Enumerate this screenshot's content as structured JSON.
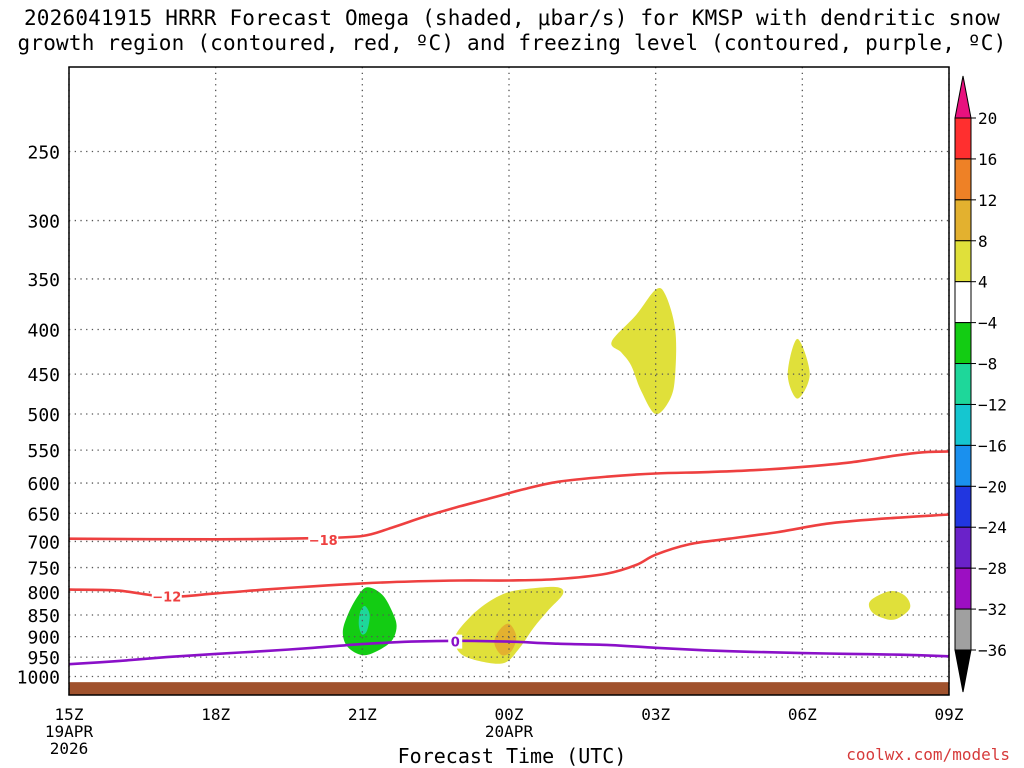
{
  "chart_data": {
    "type": "time-height cross-section",
    "title_line1": "2026041915 HRRR Forecast Omega (shaded, μbar/s) for KMSP with dendritic snow",
    "title_line2": "growth region (contoured, red, ºC) and freezing level (contoured, purple, ºC)",
    "xlabel": "Forecast Time (UTC)",
    "credit": "coolwx.com/models",
    "x_ticks": [
      {
        "hour": 0,
        "label": "15Z",
        "sub1": "19APR",
        "sub2": "2026"
      },
      {
        "hour": 3,
        "label": "18Z",
        "sub1": "",
        "sub2": ""
      },
      {
        "hour": 6,
        "label": "21Z",
        "sub1": "",
        "sub2": ""
      },
      {
        "hour": 9,
        "label": "00Z",
        "sub1": "20APR",
        "sub2": ""
      },
      {
        "hour": 12,
        "label": "03Z",
        "sub1": "",
        "sub2": ""
      },
      {
        "hour": 15,
        "label": "06Z",
        "sub1": "",
        "sub2": ""
      },
      {
        "hour": 18,
        "label": "09Z",
        "sub1": "",
        "sub2": ""
      }
    ],
    "xlim_hours": [
      0,
      18
    ],
    "ylim_hPa": [
      1050,
      200
    ],
    "pressure_ticks": [
      250,
      300,
      350,
      400,
      450,
      500,
      550,
      600,
      650,
      700,
      750,
      800,
      850,
      900,
      950,
      1000
    ],
    "colorbar": {
      "labels": [
        "20",
        "16",
        "12",
        "8",
        "4",
        "−4",
        "−8",
        "−12",
        "−16",
        "−20",
        "−24",
        "−28",
        "−32",
        "−36"
      ],
      "colors": [
        "#ff2f2f",
        "#ee8126",
        "#e3b12f",
        "#e0e03a",
        "#ffffff",
        "#13cc13",
        "#1ed79a",
        "#15c6d0",
        "#1a90ee",
        "#2136e0",
        "#6a22c9",
        "#9c0fc2",
        "#a0a0a0"
      ],
      "top_arrow_color": "#e8117e",
      "bottom_arrow_color": "#000000"
    },
    "contours": [
      {
        "name": "minus-18",
        "label": "−18",
        "color": "#ee4040",
        "label_at": [
          5.2,
          697
        ],
        "points": [
          [
            0,
            695
          ],
          [
            3,
            696
          ],
          [
            5,
            694
          ],
          [
            6,
            690
          ],
          [
            6.6,
            675
          ],
          [
            7.3,
            655
          ],
          [
            8,
            638
          ],
          [
            8.6,
            625
          ],
          [
            9.3,
            610
          ],
          [
            10,
            598
          ],
          [
            11,
            590
          ],
          [
            12,
            585
          ],
          [
            13,
            583
          ],
          [
            14,
            580
          ],
          [
            15,
            575
          ],
          [
            16,
            568
          ],
          [
            16.9,
            558
          ],
          [
            17.5,
            553
          ],
          [
            18,
            552
          ]
        ]
      },
      {
        "name": "minus-12",
        "label": "−12",
        "color": "#ee4040",
        "label_at": [
          2,
          810
        ],
        "points": [
          [
            0,
            795
          ],
          [
            1,
            797
          ],
          [
            2,
            810
          ],
          [
            3,
            803
          ],
          [
            4,
            795
          ],
          [
            5,
            788
          ],
          [
            6,
            782
          ],
          [
            7,
            778
          ],
          [
            8,
            776
          ],
          [
            9,
            776
          ],
          [
            10,
            773
          ],
          [
            11,
            762
          ],
          [
            11.6,
            745
          ],
          [
            12,
            725
          ],
          [
            12.7,
            705
          ],
          [
            13.5,
            695
          ],
          [
            14.5,
            683
          ],
          [
            15.5,
            668
          ],
          [
            16.5,
            660
          ],
          [
            18,
            652
          ]
        ]
      },
      {
        "name": "freezing-0",
        "label": "0",
        "color": "#8a10c8",
        "label_at": [
          7.9,
          912
        ],
        "points": [
          [
            0,
            968
          ],
          [
            1,
            960
          ],
          [
            2,
            950
          ],
          [
            3,
            942
          ],
          [
            4,
            935
          ],
          [
            5,
            927
          ],
          [
            6,
            918
          ],
          [
            7,
            912
          ],
          [
            8,
            910
          ],
          [
            9,
            912
          ],
          [
            10,
            917
          ],
          [
            11,
            920
          ],
          [
            12,
            927
          ],
          [
            13,
            933
          ],
          [
            14,
            937
          ],
          [
            15,
            940
          ],
          [
            16,
            942
          ],
          [
            17,
            944
          ],
          [
            18,
            948
          ]
        ]
      }
    ],
    "shaded_regions": [
      {
        "name": "green-blob-2100z",
        "value_class": "-8 to -4",
        "color": "#13cc13",
        "points": [
          [
            5.7,
            850
          ],
          [
            5.9,
            810
          ],
          [
            6.1,
            790
          ],
          [
            6.4,
            805
          ],
          [
            6.6,
            840
          ],
          [
            6.7,
            875
          ],
          [
            6.6,
            910
          ],
          [
            6.3,
            935
          ],
          [
            6.0,
            945
          ],
          [
            5.7,
            925
          ],
          [
            5.6,
            890
          ]
        ]
      },
      {
        "name": "cyan-core-2100z",
        "value_class": "-12 to -8",
        "color": "#1ed79a",
        "points": [
          [
            5.95,
            845
          ],
          [
            6.05,
            830
          ],
          [
            6.15,
            850
          ],
          [
            6.1,
            885
          ],
          [
            6.0,
            895
          ],
          [
            5.93,
            875
          ]
        ]
      },
      {
        "name": "yellow-blob-0000z",
        "value_class": "4 to 8",
        "color": "#e0e03a",
        "points": [
          [
            9,
            800
          ],
          [
            9.5,
            792
          ],
          [
            10,
            790
          ],
          [
            10.1,
            805
          ],
          [
            9.8,
            840
          ],
          [
            9.5,
            880
          ],
          [
            9.2,
            930
          ],
          [
            8.9,
            965
          ],
          [
            8.4,
            960
          ],
          [
            8.0,
            940
          ],
          [
            7.9,
            900
          ],
          [
            8.2,
            855
          ],
          [
            8.6,
            820
          ]
        ]
      },
      {
        "name": "orange-core-0000z",
        "value_class": "8 to 12",
        "color": "#e3b12f",
        "points": [
          [
            9.0,
            870
          ],
          [
            9.15,
            900
          ],
          [
            9.05,
            935
          ],
          [
            8.85,
            945
          ],
          [
            8.7,
            915
          ],
          [
            8.8,
            885
          ]
        ]
      },
      {
        "name": "yellow-blob-0300z",
        "value_class": "4 to 8",
        "color": "#e0e03a",
        "points": [
          [
            11.1,
            413
          ],
          [
            11.6,
            385
          ],
          [
            12,
            360
          ],
          [
            12.2,
            365
          ],
          [
            12.4,
            400
          ],
          [
            12.4,
            450
          ],
          [
            12.3,
            480
          ],
          [
            12,
            500
          ],
          [
            11.7,
            470
          ],
          [
            11.5,
            440
          ],
          [
            11.3,
            425
          ]
        ]
      },
      {
        "name": "yellow-small-0500z",
        "value_class": "4 to 8",
        "color": "#e0e03a",
        "points": [
          [
            14.9,
            410
          ],
          [
            15.15,
            450
          ],
          [
            14.9,
            480
          ],
          [
            14.7,
            450
          ]
        ]
      },
      {
        "name": "yellow-small-0700z",
        "value_class": "4 to 8",
        "color": "#e0e03a",
        "points": [
          [
            16.4,
            818
          ],
          [
            16.8,
            798
          ],
          [
            17.1,
            808
          ],
          [
            17.2,
            835
          ],
          [
            16.9,
            860
          ],
          [
            16.6,
            855
          ],
          [
            16.4,
            840
          ]
        ]
      }
    ],
    "ground_color": "#a0522d",
    "ground_top_hPa": 1015
  }
}
